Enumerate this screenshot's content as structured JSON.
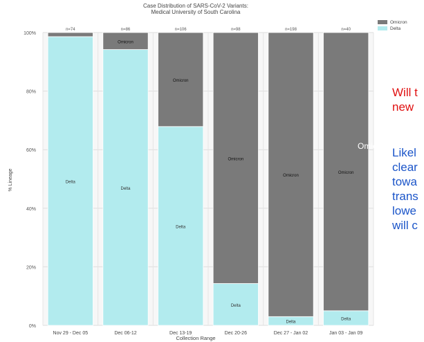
{
  "chart_data": {
    "type": "bar",
    "stacked": true,
    "title": "Case Distribution of SARS-CoV-2 Variants:",
    "subtitle": "Medical University of South Carolina",
    "xlabel": "Collection Range",
    "ylabel": "% Lineage",
    "ylim": [
      0,
      100
    ],
    "yticks": [
      "0%",
      "20%",
      "40%",
      "60%",
      "80%",
      "100%"
    ],
    "grid": true,
    "legend_position": "top-right",
    "categories": [
      "Nov 29 - Dec 05",
      "Dec 06-12",
      "Dec 13-19",
      "Dec 20-26",
      "Dec 27 - Jan 02",
      "Jan 03 - Jan 09"
    ],
    "counts": [
      "n=74",
      "n=86",
      "n=106",
      "n=98",
      "n=198",
      "n=40"
    ],
    "series": [
      {
        "name": "Delta",
        "color": "#b2ebee",
        "values": [
          98.6,
          94.2,
          67.9,
          14.3,
          3.0,
          5.0
        ]
      },
      {
        "name": "Omicron",
        "color": "#7a7a7a",
        "values": [
          1.4,
          5.8,
          32.1,
          85.7,
          97.0,
          95.0
        ]
      }
    ],
    "bar_labels": [
      {
        "series": "Omicron",
        "text": "Omicron"
      },
      {
        "series": "Delta",
        "text": "Delta"
      }
    ],
    "label_bars": {
      "Delta": [
        true,
        true,
        true,
        true,
        true,
        true
      ],
      "Omicron": [
        false,
        true,
        true,
        true,
        true,
        true
      ]
    }
  },
  "overlay": {
    "omicron_label": "Omicron",
    "question_text": "Will t",
    "question_text_2": "new",
    "answer_lines": [
      "Likel",
      "clear",
      "towa",
      "trans",
      "lowe",
      "will c"
    ]
  }
}
